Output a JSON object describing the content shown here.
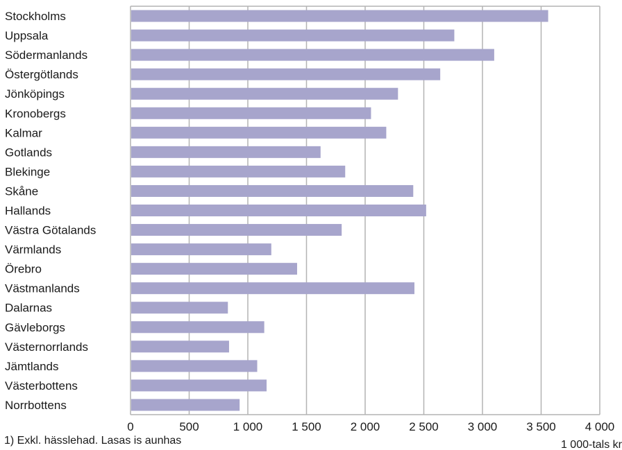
{
  "chart_data": {
    "type": "bar",
    "orientation": "horizontal",
    "categories": [
      "Stockholms",
      "Uppsala",
      "Södermanlands",
      "Östergötlands",
      "Jönköpings",
      "Kronobergs",
      "Kalmar",
      "Gotlands",
      "Blekinge",
      "Skåne",
      "Hallands",
      "Västra Götalands",
      "Värmlands",
      "Örebro",
      "Västmanlands",
      "Dalarnas",
      "Gävleborgs",
      "Västernorrlands",
      "Jämtlands",
      "Västerbottens",
      "Norrbottens"
    ],
    "values": [
      3560,
      2760,
      3100,
      2640,
      2280,
      2050,
      2180,
      1620,
      1830,
      2410,
      2520,
      1800,
      1200,
      1420,
      2420,
      830,
      1140,
      840,
      1080,
      1160,
      930
    ],
    "xlim": [
      0,
      4000
    ],
    "x_ticks": [
      0,
      500,
      1000,
      1500,
      2000,
      2500,
      3000,
      3500,
      4000
    ],
    "x_tick_labels": [
      "0",
      "500",
      "1 000",
      "1 500",
      "2 000",
      "2 500",
      "3 000",
      "3 500",
      "4 000"
    ],
    "xlabel": "1 000-tals kr",
    "grid": "vertical",
    "bar_color": "#a7a5cc",
    "footnote": "1) Exkl. hässlehad. Lasas is aunhas"
  }
}
